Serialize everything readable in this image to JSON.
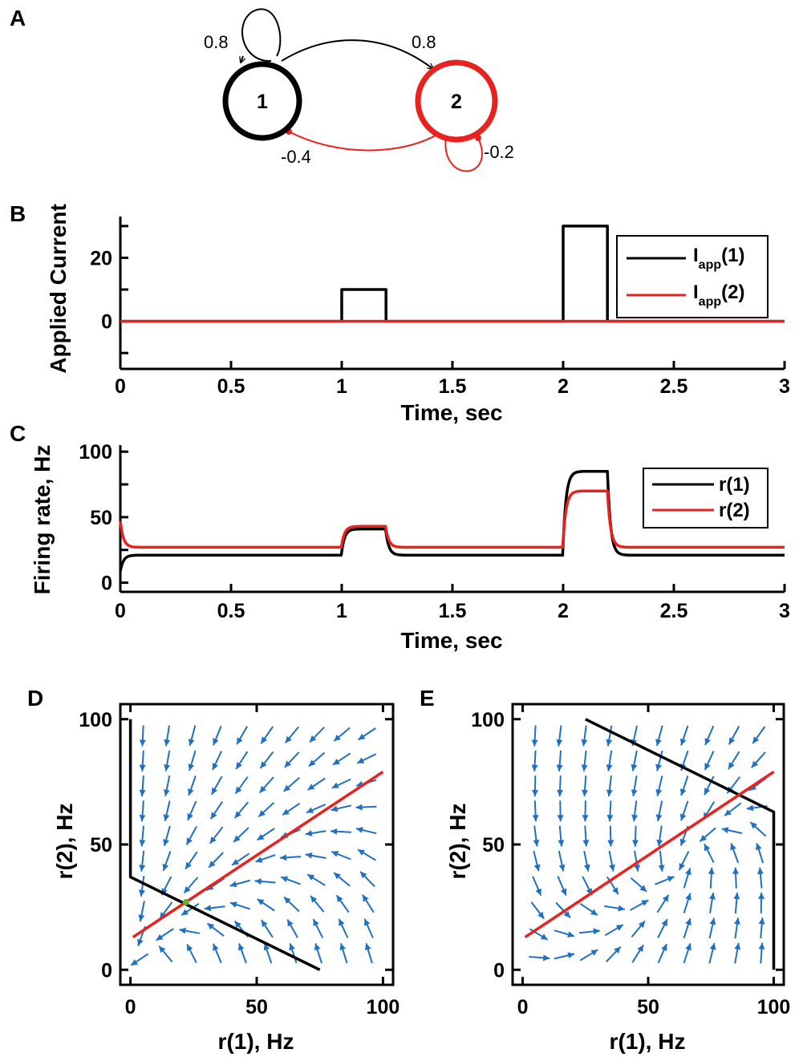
{
  "colors": {
    "black": "#000000",
    "red": "#e8221e",
    "blue": "#1f70c1",
    "green": "#5ab531"
  },
  "panels": {
    "A": "A",
    "B": "B",
    "C": "C",
    "D": "D",
    "E": "E"
  },
  "network": {
    "nodes": [
      {
        "id": "1",
        "label": "1",
        "color": "#000000"
      },
      {
        "id": "2",
        "label": "2",
        "color": "#e8221e"
      }
    ],
    "weights": {
      "w11": "0.8",
      "w12": "0.8",
      "w21": "-0.4",
      "w22": "-0.2"
    }
  },
  "chart_data": [
    {
      "id": "B",
      "type": "line",
      "xlabel": "Time, sec",
      "ylabel": "Applied Current",
      "xlim": [
        0,
        3
      ],
      "ylim": [
        -15,
        33
      ],
      "xticks": [
        "0",
        "0.5",
        "1",
        "1.5",
        "2",
        "2.5",
        "3"
      ],
      "yticks": [
        "0",
        "20"
      ],
      "legend": {
        "placement": "right",
        "entries": [
          {
            "main": "I",
            "sub": "app",
            "suffix": "(1)"
          },
          {
            "main": "I",
            "sub": "app",
            "suffix": "(2)"
          }
        ]
      },
      "series": [
        {
          "color": "#000000",
          "x": [
            0,
            1,
            1,
            1.2,
            1.2,
            2,
            2,
            2.2,
            2.2,
            3
          ],
          "y": [
            0,
            0,
            10,
            10,
            0,
            0,
            30,
            30,
            0,
            0
          ]
        },
        {
          "color": "#e8221e",
          "x": [
            0,
            3
          ],
          "y": [
            0,
            0
          ]
        }
      ]
    },
    {
      "id": "C",
      "type": "line",
      "xlabel": "Time, sec",
      "ylabel": "Firing rate, Hz",
      "xlim": [
        0,
        3
      ],
      "ylim": [
        -7,
        105
      ],
      "xticks": [
        "0",
        "0.5",
        "1",
        "1.5",
        "2",
        "2.5",
        "3"
      ],
      "yticks": [
        "0",
        "50",
        "100"
      ],
      "legend": {
        "placement": "right",
        "entries": [
          "r(1)",
          "r(2)"
        ]
      },
      "series": [
        {
          "name": "r(1)",
          "color": "#000000",
          "baseline_start": 7,
          "segments": [
            [
              0,
              21
            ],
            [
              1,
              41
            ],
            [
              1.2,
              21
            ],
            [
              2,
              85
            ],
            [
              2.2,
              21
            ]
          ]
        },
        {
          "name": "r(2)",
          "color": "#e8221e",
          "baseline_start": 50,
          "segments": [
            [
              0,
              27
            ],
            [
              1,
              43
            ],
            [
              1.2,
              27
            ],
            [
              2,
              70
            ],
            [
              2.2,
              27
            ]
          ]
        }
      ]
    },
    {
      "id": "D",
      "type": "line",
      "xlabel": "r(1), Hz",
      "ylabel": "r(2), Hz",
      "xlim": [
        -4,
        104
      ],
      "ylim": [
        -6,
        106
      ],
      "xticks": [
        "0",
        "50",
        "100"
      ],
      "yticks": [
        "0",
        "50",
        "100"
      ],
      "nullclines": [
        {
          "color": "#000000",
          "x": [
            0,
            0,
            0,
            75
          ],
          "y": [
            100,
            38,
            37,
            0
          ]
        },
        {
          "color": "#e8221e",
          "x": [
            1,
            100
          ],
          "y": [
            13,
            79
          ]
        }
      ],
      "fixed_points": [
        {
          "x": 22,
          "y": 27,
          "color": "#5ab531"
        }
      ],
      "vector_field": {
        "color": "#1f70c1",
        "A": [
          0.8,
          0.8
        ],
        "B": [
          -0.4,
          -0.2
        ],
        "I": [
          0,
          0
        ],
        "grid": {
          "min": 5,
          "max": 95,
          "step": 10
        }
      }
    },
    {
      "id": "E",
      "type": "line",
      "xlabel": "r(1), Hz",
      "ylabel": "r(2), Hz",
      "xlim": [
        -4,
        104
      ],
      "ylim": [
        -6,
        106
      ],
      "xticks": [
        "0",
        "50",
        "100"
      ],
      "yticks": [
        "0",
        "50",
        "100"
      ],
      "nullclines": [
        {
          "color": "#000000",
          "x": [
            25,
            100,
            100,
            100
          ],
          "y": [
            100,
            63,
            62,
            0
          ]
        },
        {
          "color": "#e8221e",
          "x": [
            1,
            100
          ],
          "y": [
            13,
            79
          ]
        }
      ],
      "fixed_points": [],
      "vector_field": {
        "color": "#1f70c1",
        "A": [
          0.8,
          0.8
        ],
        "B": [
          -0.4,
          -0.2
        ],
        "I": [
          30,
          0
        ],
        "grid": {
          "min": 5,
          "max": 95,
          "step": 10
        }
      }
    }
  ]
}
